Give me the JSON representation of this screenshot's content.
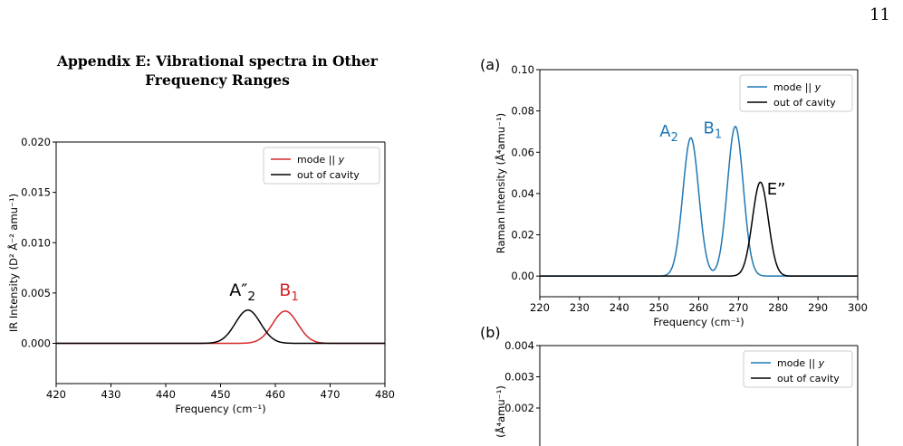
{
  "page": {
    "number": "11"
  },
  "appendix": {
    "title_line1": "Appendix E: Vibrational spectra in Other",
    "title_line2": "Frequency Ranges"
  },
  "chart_data": [
    {
      "type": "line",
      "id": "ir",
      "xlabel": "Frequency (cm⁻¹)",
      "ylabel": "IR Intensity (D² Å⁻² amu⁻¹)",
      "xlim": [
        420,
        480
      ],
      "ylim": [
        -0.004,
        0.02
      ],
      "xticks": [
        "420",
        "430",
        "440",
        "450",
        "460",
        "470",
        "480"
      ],
      "yticks": [
        "0.000",
        "0.005",
        "0.010",
        "0.015",
        "0.020"
      ],
      "legend": "top-right",
      "series": [
        {
          "name": "mode || y",
          "color": "#d62728",
          "peaks": [
            {
              "center": 461.8,
              "height": 0.0032,
              "sigma": 2.3
            }
          ]
        },
        {
          "name": "out of cavity",
          "color": "#000000",
          "peaks": [
            {
              "center": 455.0,
              "height": 0.0033,
              "sigma": 2.3
            }
          ]
        }
      ],
      "annotations": [
        {
          "text": "A″",
          "sub": "2",
          "x": 454.0,
          "y": 0.0047,
          "color": "#000000"
        },
        {
          "text": "B",
          "sub": "1",
          "x": 462.5,
          "y": 0.0047,
          "color": "#d62728"
        }
      ]
    },
    {
      "type": "line",
      "id": "raman",
      "label": "(a)",
      "xlabel": "Frequency (cm⁻¹)",
      "ylabel": "Raman Intensity (Å⁴amu⁻¹)",
      "xlim": [
        220,
        300
      ],
      "ylim": [
        -0.01,
        0.1
      ],
      "xticks": [
        "220",
        "230",
        "240",
        "250",
        "260",
        "270",
        "280",
        "290",
        "300"
      ],
      "yticks": [
        "0.00",
        "0.02",
        "0.04",
        "0.06",
        "0.08",
        "0.10"
      ],
      "legend": "top-right",
      "series": [
        {
          "name": "mode || y",
          "color": "#1f77b4",
          "peaks": [
            {
              "center": 258.0,
              "height": 0.067,
              "sigma": 2.0
            },
            {
              "center": 269.2,
              "height": 0.0725,
              "sigma": 2.0
            }
          ]
        },
        {
          "name": "out of cavity",
          "color": "#000000",
          "peaks": [
            {
              "center": 275.5,
              "height": 0.0455,
              "sigma": 2.0
            }
          ]
        }
      ],
      "annotations": [
        {
          "text": "A",
          "sub": "2",
          "x": 252.5,
          "y": 0.0675,
          "color": "#1f77b4"
        },
        {
          "text": "B",
          "sub": "1",
          "x": 263.5,
          "y": 0.069,
          "color": "#1f77b4"
        },
        {
          "text": "E”",
          "sub": "",
          "x": 279.5,
          "y": 0.0395,
          "color": "#000000"
        }
      ]
    },
    {
      "type": "line",
      "id": "raman-b",
      "label": "(b)",
      "xlabel": "",
      "ylabel": "(Å⁴amu⁻¹)",
      "xlim": [
        220,
        300
      ],
      "ylim": [
        0.0,
        0.004
      ],
      "xticks": [],
      "yticks": [
        "0.002",
        "0.003",
        "0.004"
      ],
      "legend": "top-right",
      "series": [
        {
          "name": "mode || y",
          "color": "#1f77b4",
          "peaks": []
        },
        {
          "name": "out of cavity",
          "color": "#000000",
          "peaks": []
        }
      ],
      "annotations": []
    }
  ]
}
